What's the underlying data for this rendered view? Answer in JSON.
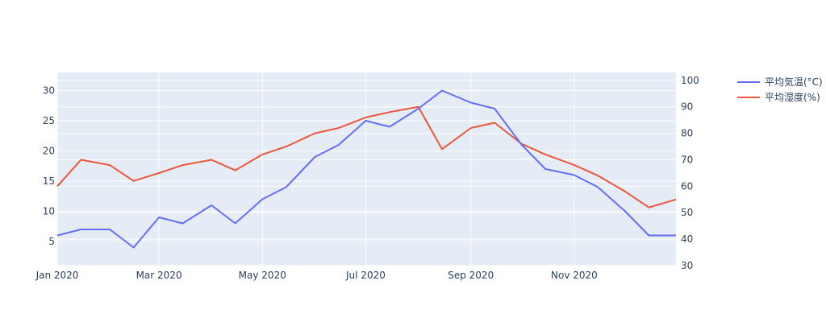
{
  "chart_data": {
    "type": "line",
    "title": "",
    "xlabel": "",
    "ylabel": "",
    "y2label": "",
    "x_ticks": [
      "Jan 2020",
      "Mar 2020",
      "May 2020",
      "Jul 2020",
      "Sep 2020",
      "Nov 2020"
    ],
    "y_ticks": [
      5,
      10,
      15,
      20,
      25,
      30
    ],
    "y2_ticks": [
      30,
      40,
      50,
      60,
      70,
      80,
      90,
      100
    ],
    "xlim": [
      "2020-01-01",
      "2020-12-31"
    ],
    "ylim": [
      1.0,
      33.0
    ],
    "y2lim": [
      30,
      103
    ],
    "grid": true,
    "legend_position": "top-right",
    "colors": {
      "temperature": "#636efa",
      "humidity": "#ef553b",
      "plot_bg": "#e5ecf6",
      "grid": "#ffffff"
    },
    "x_monthly": [
      "2020-01-01",
      "2020-01-15",
      "2020-02-01",
      "2020-02-15",
      "2020-03-01",
      "2020-03-15",
      "2020-04-01",
      "2020-04-15",
      "2020-05-01",
      "2020-05-15",
      "2020-06-01",
      "2020-06-15",
      "2020-07-01",
      "2020-07-15",
      "2020-08-01",
      "2020-08-15",
      "2020-09-01",
      "2020-09-15",
      "2020-10-01",
      "2020-10-15",
      "2020-11-01",
      "2020-11-15",
      "2020-12-01",
      "2020-12-15",
      "2020-12-31"
    ],
    "series": [
      {
        "name": "平均気温(°C)",
        "axis": "y",
        "values": [
          6,
          7,
          7,
          4,
          9,
          8,
          11,
          8,
          12,
          14,
          19,
          21,
          25,
          24,
          27,
          30,
          28,
          27,
          21,
          17,
          16,
          14,
          10,
          6,
          6
        ]
      },
      {
        "name": "平均湿度(%)",
        "axis": "y2",
        "values": [
          60,
          70,
          68,
          62,
          65,
          68,
          70,
          66,
          72,
          75,
          80,
          82,
          86,
          88,
          90,
          74,
          82,
          84,
          76,
          72,
          68,
          64,
          58,
          52,
          55
        ]
      }
    ]
  }
}
